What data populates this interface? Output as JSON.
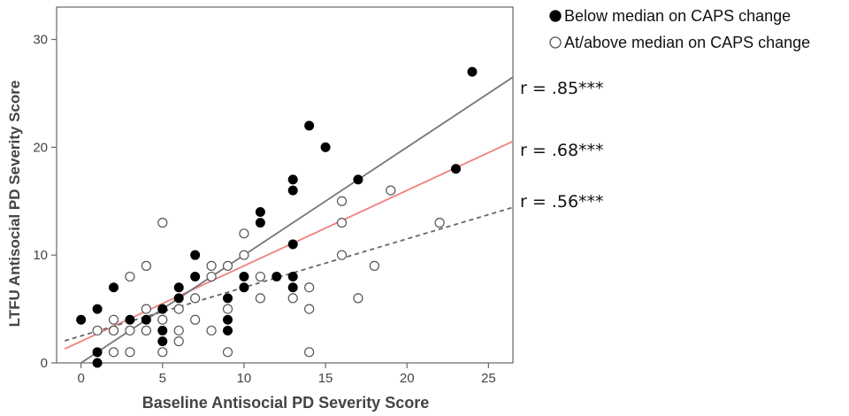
{
  "chart_data": {
    "type": "scatter",
    "xlabel": "Baseline Antisocial PD Severity Score",
    "ylabel": "LTFU Antisocial PD Severity Score",
    "xlim": [
      -1.5,
      26.5
    ],
    "ylim": [
      0,
      33
    ],
    "x_ticks": [
      0,
      5,
      10,
      15,
      20,
      25
    ],
    "y_ticks": [
      0,
      10,
      20,
      30
    ],
    "legend_position": "top-right",
    "series": [
      {
        "name": "Below median on CAPS change",
        "marker": "filled-circle",
        "color": "#000000",
        "fit_line": {
          "intercept": 0.0,
          "slope": 1.0,
          "style": "solid",
          "color": "#777777",
          "label": "r = .85***"
        },
        "points": [
          [
            0,
            4
          ],
          [
            1,
            5
          ],
          [
            1,
            1
          ],
          [
            1,
            0
          ],
          [
            2,
            7
          ],
          [
            2,
            3
          ],
          [
            3,
            4
          ],
          [
            4,
            4
          ],
          [
            4,
            3
          ],
          [
            5,
            5
          ],
          [
            5,
            3
          ],
          [
            5,
            2
          ],
          [
            6,
            7
          ],
          [
            6,
            6
          ],
          [
            7,
            10
          ],
          [
            7,
            8
          ],
          [
            9,
            6
          ],
          [
            9,
            4
          ],
          [
            9,
            3
          ],
          [
            10,
            8
          ],
          [
            10,
            7
          ],
          [
            11,
            14
          ],
          [
            11,
            13
          ],
          [
            12,
            8
          ],
          [
            13,
            17
          ],
          [
            13,
            16
          ],
          [
            13,
            11
          ],
          [
            13,
            8
          ],
          [
            13,
            7
          ],
          [
            14,
            22
          ],
          [
            15,
            20
          ],
          [
            17,
            17
          ],
          [
            23,
            18
          ],
          [
            24,
            27
          ]
        ]
      },
      {
        "name": "At/above median on CAPS change",
        "marker": "open-circle",
        "color": "#000000",
        "fit_line": {
          "intercept": 2.5,
          "slope": 0.45,
          "style": "dashed",
          "color": "#666666",
          "label": "r = .56***"
        },
        "points": [
          [
            1,
            3
          ],
          [
            2,
            4
          ],
          [
            2,
            3
          ],
          [
            2,
            1
          ],
          [
            3,
            8
          ],
          [
            3,
            3
          ],
          [
            3,
            1
          ],
          [
            4,
            9
          ],
          [
            4,
            5
          ],
          [
            4,
            3
          ],
          [
            5,
            13
          ],
          [
            5,
            4
          ],
          [
            5,
            1
          ],
          [
            6,
            5
          ],
          [
            6,
            3
          ],
          [
            6,
            2
          ],
          [
            7,
            6
          ],
          [
            7,
            4
          ],
          [
            8,
            9
          ],
          [
            8,
            8
          ],
          [
            8,
            3
          ],
          [
            9,
            9
          ],
          [
            9,
            5
          ],
          [
            9,
            1
          ],
          [
            10,
            12
          ],
          [
            10,
            10
          ],
          [
            11,
            8
          ],
          [
            11,
            6
          ],
          [
            13,
            6
          ],
          [
            14,
            7
          ],
          [
            14,
            5
          ],
          [
            14,
            1
          ],
          [
            16,
            15
          ],
          [
            16,
            13
          ],
          [
            16,
            10
          ],
          [
            17,
            6
          ],
          [
            18,
            9
          ],
          [
            19,
            16
          ],
          [
            22,
            13
          ]
        ]
      }
    ],
    "overall_fit": {
      "intercept": 2.0,
      "slope": 0.7,
      "style": "solid",
      "color": "#f08080",
      "label": "r = .68***"
    },
    "annotations": [
      "r = .85***",
      "r = .68***",
      "r = .56***"
    ]
  }
}
